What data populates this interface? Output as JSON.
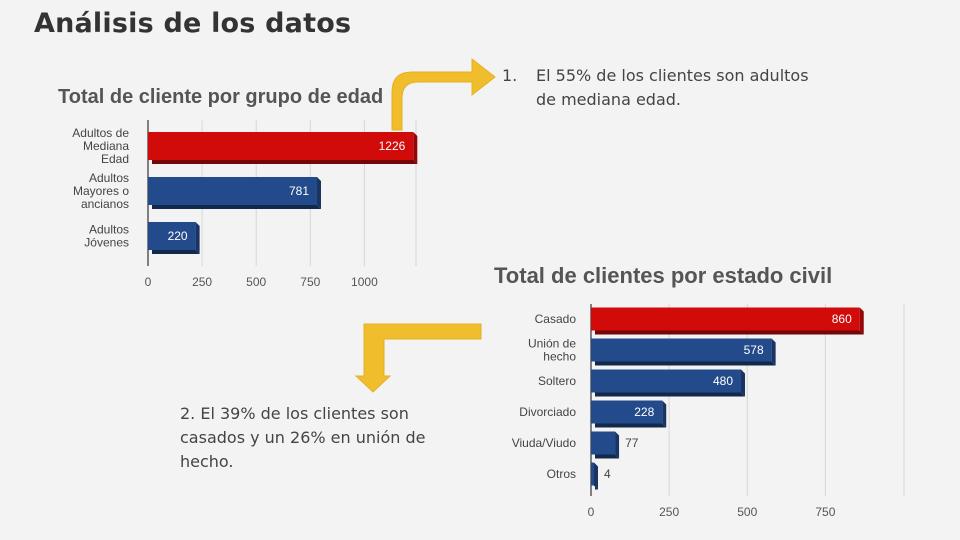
{
  "slide": {
    "title": "Análisis de los datos"
  },
  "notes": {
    "note1": {
      "number": "1.",
      "text": "El 55% de los clientes son adultos de mediana edad."
    },
    "note2": {
      "text": "2. El 39% de los clientes son casados y un 26% en unión de hecho."
    }
  },
  "colors": {
    "highlight": "#d10a0a",
    "bar": "#234a8a",
    "arrow": "#f0bd2c"
  },
  "chart_data": [
    {
      "type": "bar",
      "orientation": "horizontal",
      "title": "Total de cliente por grupo de edad",
      "categories": [
        [
          "Adultos de",
          "Mediana",
          "Edad"
        ],
        [
          "Adultos",
          "Mayores o",
          "ancianos"
        ],
        [
          "Adultos",
          "Jóvenes"
        ]
      ],
      "values": [
        1226,
        781,
        220
      ],
      "highlight_index": 0,
      "xlim": [
        0,
        1250
      ],
      "xticks": [
        0,
        250,
        500,
        750,
        1000
      ],
      "grid": true
    },
    {
      "type": "bar",
      "orientation": "horizontal",
      "title": "Total de clientes por estado civil",
      "categories": [
        [
          "Casado"
        ],
        [
          "Unión de",
          "hecho"
        ],
        [
          "Soltero"
        ],
        [
          "Divorciado"
        ],
        [
          "Viuda/Viudo"
        ],
        [
          "Otros"
        ]
      ],
      "values": [
        860,
        578,
        480,
        228,
        77,
        4
      ],
      "highlight_index": 0,
      "xlim": [
        0,
        1000
      ],
      "xticks": [
        0,
        250,
        500,
        750
      ],
      "grid": true
    }
  ]
}
